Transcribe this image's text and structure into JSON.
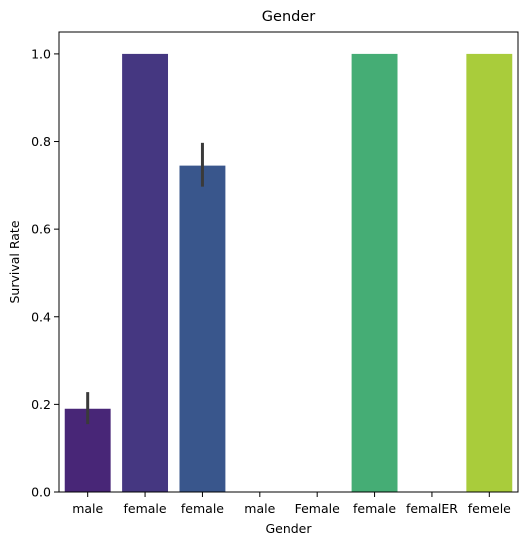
{
  "chart_data": {
    "type": "bar",
    "title": "Gender",
    "xlabel": "Gender",
    "ylabel": "Survival Rate",
    "categories": [
      "male",
      "female",
      "female",
      "male",
      "Female",
      "female",
      "femalER",
      "femele"
    ],
    "values": [
      0.19,
      1.0,
      0.745,
      0.0,
      0.0,
      1.0,
      0.0,
      1.0
    ],
    "error_bars": [
      [
        0.155,
        0.228
      ],
      null,
      [
        0.697,
        0.797
      ],
      null,
      null,
      null,
      null,
      null
    ],
    "colors": [
      "#482677",
      "#453781",
      "#39568C",
      "#2D708E",
      "#20A386",
      "#45AD75",
      "#87CF55",
      "#A9CC3B"
    ],
    "error_bar_color": "#3a3a3a",
    "ylim": [
      0,
      1.05
    ],
    "yticks": [
      "0.0",
      "0.2",
      "0.4",
      "0.6",
      "0.8",
      "1.0"
    ],
    "grid": false,
    "legend": "none"
  }
}
